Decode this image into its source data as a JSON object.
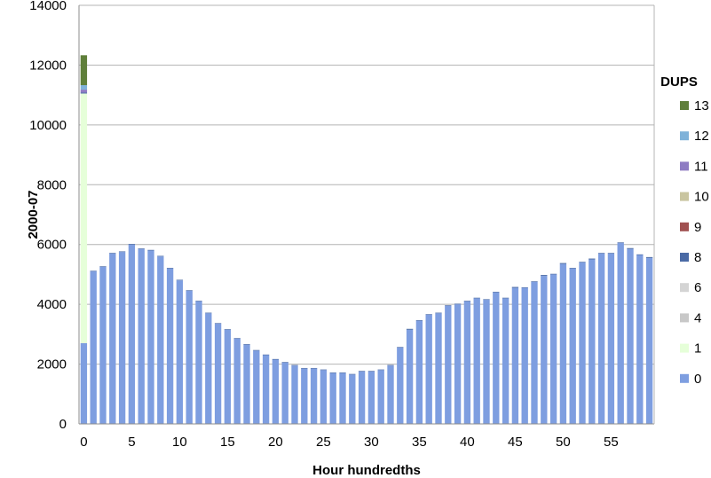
{
  "chart_data": {
    "type": "bar",
    "stacked": true,
    "title": "",
    "xlabel": "Hour hundredths",
    "ylabel": "2000-07",
    "ylim": [
      0,
      14000
    ],
    "yticks": [
      0,
      2000,
      4000,
      6000,
      8000,
      10000,
      12000,
      14000
    ],
    "xticks": [
      0,
      5,
      10,
      15,
      20,
      25,
      30,
      35,
      40,
      45,
      50,
      55
    ],
    "grid": "horizontal",
    "legend": {
      "title": "DUPS",
      "placement": "right"
    },
    "x": [
      0,
      1,
      2,
      3,
      4,
      5,
      6,
      7,
      8,
      9,
      10,
      11,
      12,
      13,
      14,
      15,
      16,
      17,
      18,
      19,
      20,
      21,
      22,
      23,
      24,
      25,
      26,
      27,
      28,
      29,
      30,
      31,
      32,
      33,
      34,
      35,
      36,
      37,
      38,
      39,
      40,
      41,
      42,
      43,
      44,
      45,
      46,
      47,
      48,
      49,
      50,
      51,
      52,
      53,
      54,
      55,
      56,
      57,
      58,
      59
    ],
    "series": [
      {
        "name": "0",
        "color": "#7e9ee0",
        "values": [
          2700,
          5100,
          5250,
          5700,
          5750,
          6000,
          5850,
          5800,
          5600,
          5200,
          4800,
          4450,
          4100,
          3700,
          3350,
          3150,
          2850,
          2650,
          2450,
          2300,
          2150,
          2050,
          1950,
          1850,
          1850,
          1800,
          1700,
          1700,
          1650,
          1750,
          1750,
          1800,
          1950,
          2550,
          3150,
          3450,
          3650,
          3700,
          3950,
          4000,
          4100,
          4200,
          4150,
          4400,
          4200,
          4550,
          4550,
          4750,
          4950,
          5000,
          5350,
          5200,
          5400,
          5500,
          5700,
          5700,
          6050,
          5850,
          5650,
          5550
        ]
      },
      {
        "name": "1",
        "color": "#e6ffd9",
        "values": [
          8350,
          0,
          0,
          0,
          0,
          0,
          0,
          0,
          0,
          0,
          0,
          0,
          0,
          0,
          0,
          0,
          0,
          0,
          0,
          0,
          0,
          0,
          0,
          0,
          0,
          0,
          0,
          0,
          0,
          0,
          0,
          0,
          0,
          0,
          0,
          0,
          0,
          0,
          0,
          0,
          0,
          0,
          0,
          0,
          0,
          0,
          0,
          0,
          0,
          0,
          0,
          0,
          0,
          0,
          0,
          0,
          0,
          0,
          0,
          0
        ]
      },
      {
        "name": "4",
        "color": "#c8c8c8",
        "values": [
          0,
          0,
          0,
          0,
          0,
          0,
          0,
          0,
          0,
          0,
          0,
          0,
          0,
          0,
          0,
          0,
          0,
          0,
          0,
          0,
          0,
          0,
          0,
          0,
          0,
          0,
          0,
          0,
          0,
          0,
          0,
          0,
          0,
          0,
          0,
          0,
          0,
          0,
          0,
          0,
          0,
          0,
          0,
          0,
          0,
          0,
          0,
          0,
          0,
          0,
          0,
          0,
          0,
          0,
          0,
          0,
          0,
          0,
          0,
          0
        ]
      },
      {
        "name": "6",
        "color": "#d4d4d4",
        "values": [
          0,
          0,
          0,
          0,
          0,
          0,
          0,
          0,
          0,
          0,
          0,
          0,
          0,
          0,
          0,
          0,
          0,
          0,
          0,
          0,
          0,
          0,
          0,
          0,
          0,
          0,
          0,
          0,
          0,
          0,
          0,
          0,
          0,
          0,
          0,
          0,
          0,
          0,
          0,
          0,
          0,
          0,
          0,
          0,
          0,
          0,
          0,
          0,
          0,
          0,
          0,
          0,
          0,
          0,
          0,
          0,
          0,
          0,
          0,
          0
        ]
      },
      {
        "name": "8",
        "color": "#4a6aa5",
        "values": [
          30,
          20,
          20,
          20,
          20,
          20,
          20,
          20,
          20,
          20,
          20,
          20,
          20,
          20,
          20,
          20,
          20,
          20,
          20,
          20,
          20,
          20,
          20,
          20,
          20,
          20,
          20,
          20,
          20,
          20,
          20,
          20,
          20,
          20,
          30,
          20,
          20,
          20,
          20,
          20,
          20,
          20,
          20,
          20,
          20,
          30,
          20,
          20,
          30,
          20,
          30,
          20,
          20,
          30,
          20,
          20,
          20,
          30,
          20,
          30
        ]
      },
      {
        "name": "9",
        "color": "#a05050",
        "values": [
          0,
          0,
          0,
          0,
          0,
          0,
          0,
          0,
          0,
          0,
          0,
          0,
          0,
          0,
          0,
          0,
          0,
          0,
          0,
          0,
          0,
          0,
          0,
          0,
          0,
          0,
          0,
          0,
          0,
          0,
          0,
          0,
          0,
          0,
          0,
          0,
          0,
          0,
          0,
          0,
          0,
          0,
          0,
          0,
          0,
          0,
          0,
          0,
          0,
          0,
          0,
          0,
          0,
          0,
          0,
          0,
          0,
          0,
          0,
          0
        ]
      },
      {
        "name": "10",
        "color": "#c9c5a0",
        "values": [
          0,
          0,
          0,
          0,
          0,
          0,
          0,
          0,
          0,
          0,
          0,
          0,
          0,
          0,
          0,
          0,
          0,
          0,
          0,
          0,
          0,
          0,
          0,
          0,
          0,
          0,
          0,
          0,
          0,
          0,
          0,
          0,
          0,
          0,
          0,
          0,
          0,
          0,
          0,
          0,
          0,
          0,
          0,
          0,
          0,
          0,
          0,
          0,
          0,
          0,
          0,
          0,
          0,
          0,
          0,
          0,
          0,
          0,
          0,
          0
        ]
      },
      {
        "name": "11",
        "color": "#8e7cc3",
        "values": [
          100,
          0,
          0,
          0,
          0,
          0,
          0,
          0,
          0,
          0,
          0,
          0,
          0,
          0,
          0,
          0,
          0,
          0,
          0,
          0,
          0,
          0,
          0,
          0,
          0,
          0,
          0,
          0,
          0,
          0,
          0,
          0,
          0,
          0,
          0,
          0,
          0,
          0,
          0,
          0,
          0,
          0,
          0,
          0,
          0,
          0,
          0,
          0,
          0,
          0,
          0,
          0,
          0,
          0,
          0,
          0,
          0,
          0,
          0,
          0
        ]
      },
      {
        "name": "12",
        "color": "#7fb2d9",
        "values": [
          150,
          0,
          0,
          0,
          0,
          0,
          0,
          0,
          0,
          0,
          0,
          0,
          0,
          0,
          0,
          0,
          0,
          0,
          0,
          0,
          0,
          0,
          0,
          0,
          0,
          0,
          0,
          0,
          0,
          0,
          0,
          0,
          0,
          0,
          0,
          0,
          0,
          0,
          0,
          0,
          0,
          0,
          0,
          0,
          0,
          0,
          0,
          0,
          0,
          0,
          0,
          0,
          0,
          0,
          0,
          0,
          0,
          0,
          0,
          0
        ]
      },
      {
        "name": "13",
        "color": "#5f7f3a",
        "values": [
          1000,
          0,
          0,
          0,
          0,
          0,
          0,
          0,
          0,
          0,
          0,
          0,
          0,
          0,
          0,
          0,
          0,
          0,
          0,
          0,
          0,
          0,
          0,
          0,
          0,
          0,
          0,
          0,
          0,
          0,
          0,
          0,
          0,
          0,
          0,
          0,
          0,
          0,
          0,
          0,
          0,
          0,
          0,
          0,
          0,
          0,
          0,
          0,
          0,
          0,
          0,
          0,
          0,
          0,
          0,
          0,
          0,
          0,
          0,
          0
        ]
      }
    ],
    "legend_order": [
      "13",
      "12",
      "11",
      "10",
      "9",
      "8",
      "6",
      "4",
      "1",
      "0"
    ]
  }
}
